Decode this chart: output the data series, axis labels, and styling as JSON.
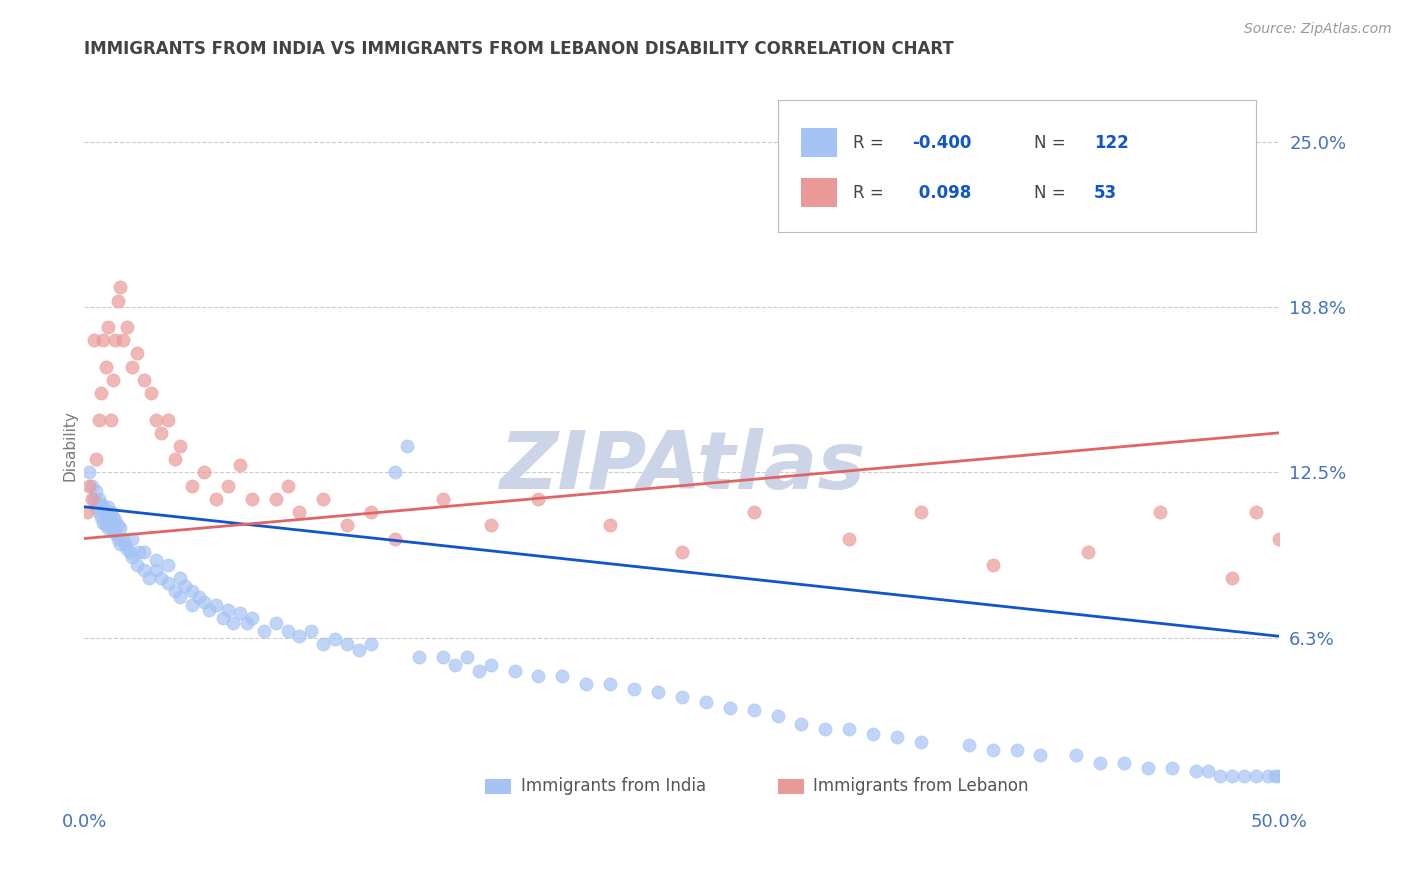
{
  "title": "IMMIGRANTS FROM INDIA VS IMMIGRANTS FROM LEBANON DISABILITY CORRELATION CHART",
  "source": "Source: ZipAtlas.com",
  "ylabel": "Disability",
  "xlim": [
    0.0,
    0.5
  ],
  "ylim": [
    0.0,
    0.27
  ],
  "ytick_vals": [
    0.0625,
    0.125,
    0.1875,
    0.25
  ],
  "ytick_labels": [
    "6.3%",
    "12.5%",
    "18.8%",
    "25.0%"
  ],
  "xtick_vals": [
    0.0,
    0.5
  ],
  "xtick_labels": [
    "0.0%",
    "50.0%"
  ],
  "india_color": "#a4c2f4",
  "lebanon_color": "#ea9999",
  "india_line_color": "#1155cc",
  "lebanon_line_color": "#e06666",
  "tick_color": "#4472c4",
  "grid_color": "#cccccc",
  "watermark": "ZIPAtlas",
  "watermark_color": "#ccd5e8",
  "title_color": "#434343",
  "source_color": "#999999",
  "ylabel_color": "#777777",
  "background_color": "#ffffff",
  "india_scatter_x": [
    0.002,
    0.003,
    0.004,
    0.005,
    0.005,
    0.006,
    0.006,
    0.007,
    0.007,
    0.008,
    0.008,
    0.009,
    0.009,
    0.01,
    0.01,
    0.01,
    0.011,
    0.011,
    0.012,
    0.012,
    0.013,
    0.013,
    0.014,
    0.014,
    0.015,
    0.015,
    0.016,
    0.017,
    0.018,
    0.019,
    0.02,
    0.02,
    0.022,
    0.023,
    0.025,
    0.025,
    0.027,
    0.03,
    0.03,
    0.032,
    0.035,
    0.035,
    0.038,
    0.04,
    0.04,
    0.042,
    0.045,
    0.045,
    0.048,
    0.05,
    0.052,
    0.055,
    0.058,
    0.06,
    0.062,
    0.065,
    0.068,
    0.07,
    0.075,
    0.08,
    0.085,
    0.09,
    0.095,
    0.1,
    0.105,
    0.11,
    0.115,
    0.12,
    0.13,
    0.135,
    0.14,
    0.15,
    0.155,
    0.16,
    0.165,
    0.17,
    0.18,
    0.19,
    0.2,
    0.21,
    0.22,
    0.23,
    0.24,
    0.25,
    0.26,
    0.27,
    0.28,
    0.29,
    0.3,
    0.31,
    0.32,
    0.33,
    0.34,
    0.35,
    0.37,
    0.38,
    0.39,
    0.4,
    0.415,
    0.425,
    0.435,
    0.445,
    0.455,
    0.465,
    0.47,
    0.475,
    0.48,
    0.485,
    0.49,
    0.495,
    0.498,
    0.5,
    0.502,
    0.505,
    0.508,
    0.51,
    0.512,
    0.515,
    0.518,
    0.52,
    0.522,
    0.525
  ],
  "india_scatter_y": [
    0.125,
    0.12,
    0.115,
    0.118,
    0.112,
    0.115,
    0.11,
    0.113,
    0.108,
    0.112,
    0.106,
    0.11,
    0.105,
    0.108,
    0.104,
    0.112,
    0.105,
    0.11,
    0.103,
    0.108,
    0.102,
    0.107,
    0.1,
    0.105,
    0.098,
    0.104,
    0.1,
    0.098,
    0.096,
    0.095,
    0.093,
    0.1,
    0.09,
    0.095,
    0.088,
    0.095,
    0.085,
    0.092,
    0.088,
    0.085,
    0.09,
    0.083,
    0.08,
    0.085,
    0.078,
    0.082,
    0.08,
    0.075,
    0.078,
    0.076,
    0.073,
    0.075,
    0.07,
    0.073,
    0.068,
    0.072,
    0.068,
    0.07,
    0.065,
    0.068,
    0.065,
    0.063,
    0.065,
    0.06,
    0.062,
    0.06,
    0.058,
    0.06,
    0.125,
    0.135,
    0.055,
    0.055,
    0.052,
    0.055,
    0.05,
    0.052,
    0.05,
    0.048,
    0.048,
    0.045,
    0.045,
    0.043,
    0.042,
    0.04,
    0.038,
    0.036,
    0.035,
    0.033,
    0.03,
    0.028,
    0.028,
    0.026,
    0.025,
    0.023,
    0.022,
    0.02,
    0.02,
    0.018,
    0.018,
    0.015,
    0.015,
    0.013,
    0.013,
    0.012,
    0.012,
    0.01,
    0.01,
    0.01,
    0.01,
    0.01,
    0.01,
    0.01,
    0.01,
    0.01,
    0.01,
    0.01,
    0.01,
    0.01,
    0.01,
    0.01,
    0.01,
    0.01
  ],
  "lebanon_scatter_x": [
    0.001,
    0.002,
    0.003,
    0.004,
    0.005,
    0.006,
    0.007,
    0.008,
    0.009,
    0.01,
    0.011,
    0.012,
    0.013,
    0.014,
    0.015,
    0.016,
    0.018,
    0.02,
    0.022,
    0.025,
    0.028,
    0.03,
    0.032,
    0.035,
    0.038,
    0.04,
    0.045,
    0.05,
    0.055,
    0.06,
    0.065,
    0.07,
    0.08,
    0.085,
    0.09,
    0.1,
    0.11,
    0.12,
    0.13,
    0.15,
    0.17,
    0.19,
    0.22,
    0.25,
    0.28,
    0.32,
    0.35,
    0.38,
    0.42,
    0.45,
    0.48,
    0.49,
    0.5
  ],
  "lebanon_scatter_y": [
    0.11,
    0.12,
    0.115,
    0.175,
    0.13,
    0.145,
    0.155,
    0.175,
    0.165,
    0.18,
    0.145,
    0.16,
    0.175,
    0.19,
    0.195,
    0.175,
    0.18,
    0.165,
    0.17,
    0.16,
    0.155,
    0.145,
    0.14,
    0.145,
    0.13,
    0.135,
    0.12,
    0.125,
    0.115,
    0.12,
    0.128,
    0.115,
    0.115,
    0.12,
    0.11,
    0.115,
    0.105,
    0.11,
    0.1,
    0.115,
    0.105,
    0.115,
    0.105,
    0.095,
    0.11,
    0.1,
    0.11,
    0.09,
    0.095,
    0.11,
    0.085,
    0.11,
    0.1
  ],
  "india_line_x0": 0.0,
  "india_line_y0": 0.112,
  "india_line_x1": 0.5,
  "india_line_y1": 0.063,
  "lebanon_line_x0": 0.0,
  "lebanon_line_y0": 0.1,
  "lebanon_line_x1": 0.5,
  "lebanon_line_y1": 0.14
}
